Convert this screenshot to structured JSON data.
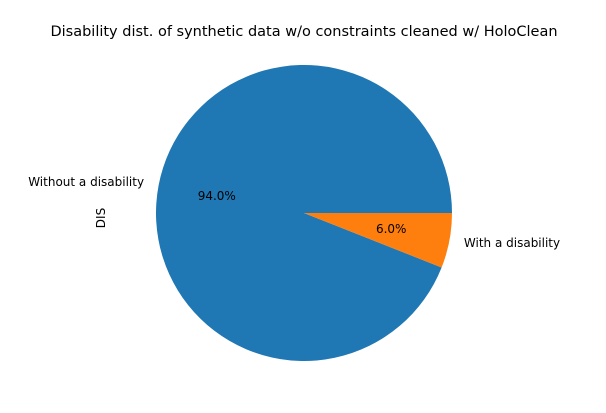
{
  "chart_data": {
    "type": "pie",
    "title": "Disability dist. of synthetic data w/o constraints cleaned w/ HoloClean",
    "ylabel": "DIS",
    "slices": [
      {
        "label": "Without a disability",
        "value": 94.0,
        "pct_label": "94.0%",
        "color": "#1f77b4"
      },
      {
        "label": "With a disability",
        "value": 6.0,
        "pct_label": "6.0%",
        "color": "#ff7f0e"
      }
    ],
    "start_angle_deg": 0,
    "direction": "counterclockwise",
    "legend": "none"
  }
}
